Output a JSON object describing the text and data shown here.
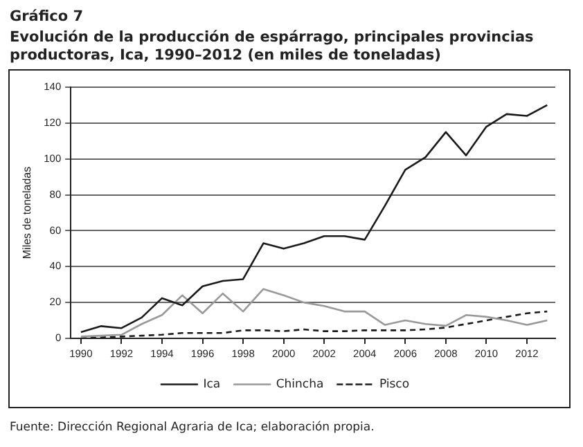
{
  "chart_data": {
    "type": "line",
    "title": "Gráfico 7",
    "subtitle": "Evolución de la producción de espárrago, principales provincias productoras, Ica, 1990–2012 (en miles de toneladas)",
    "ylabel": "Miles de toneladas",
    "x": [
      1990,
      1991,
      1992,
      1993,
      1994,
      1995,
      1996,
      1997,
      1998,
      1999,
      2000,
      2001,
      2002,
      2003,
      2004,
      2005,
      2006,
      2007,
      2008,
      2009,
      2010,
      2011,
      2012,
      2013
    ],
    "series": [
      {
        "name": "Ica",
        "color": "#1a1a1a",
        "line_style": "solid",
        "values": [
          3.5,
          6.8,
          5.7,
          11.6,
          22.4,
          18.4,
          29,
          32,
          33,
          53,
          50,
          53,
          57,
          57,
          55,
          74,
          94,
          101,
          115,
          102,
          118,
          125,
          124,
          130
        ]
      },
      {
        "name": "Chincha",
        "color": "#999999",
        "line_style": "solid",
        "values": [
          1,
          1.5,
          2,
          8,
          13,
          24,
          14,
          25,
          15,
          27.5,
          24,
          20,
          18,
          15,
          15,
          7.5,
          10,
          8,
          7,
          13,
          12,
          10,
          7.5,
          10
        ]
      },
      {
        "name": "Pisco",
        "color": "#1a1a1a",
        "line_style": "dashed",
        "values": [
          0,
          0.5,
          1,
          1.5,
          2,
          3,
          3,
          3,
          4.5,
          4.5,
          4,
          5,
          4,
          4,
          4.5,
          4.5,
          4.5,
          5,
          6,
          8,
          10,
          12,
          14,
          15
        ]
      }
    ],
    "xlim": [
      1989.5,
      2013.4
    ],
    "xticks": [
      1990,
      1992,
      1994,
      1996,
      1998,
      2000,
      2002,
      2004,
      2006,
      2008,
      2010,
      2012
    ],
    "ylim": [
      0,
      140
    ],
    "yticks": [
      0,
      20,
      40,
      60,
      80,
      100,
      120,
      140
    ],
    "grid": "y",
    "legend": "bottom",
    "marker": "none",
    "annotations": [
      "Fuente: Dirección Regional Agraria de Ica; elaboración propia."
    ]
  }
}
